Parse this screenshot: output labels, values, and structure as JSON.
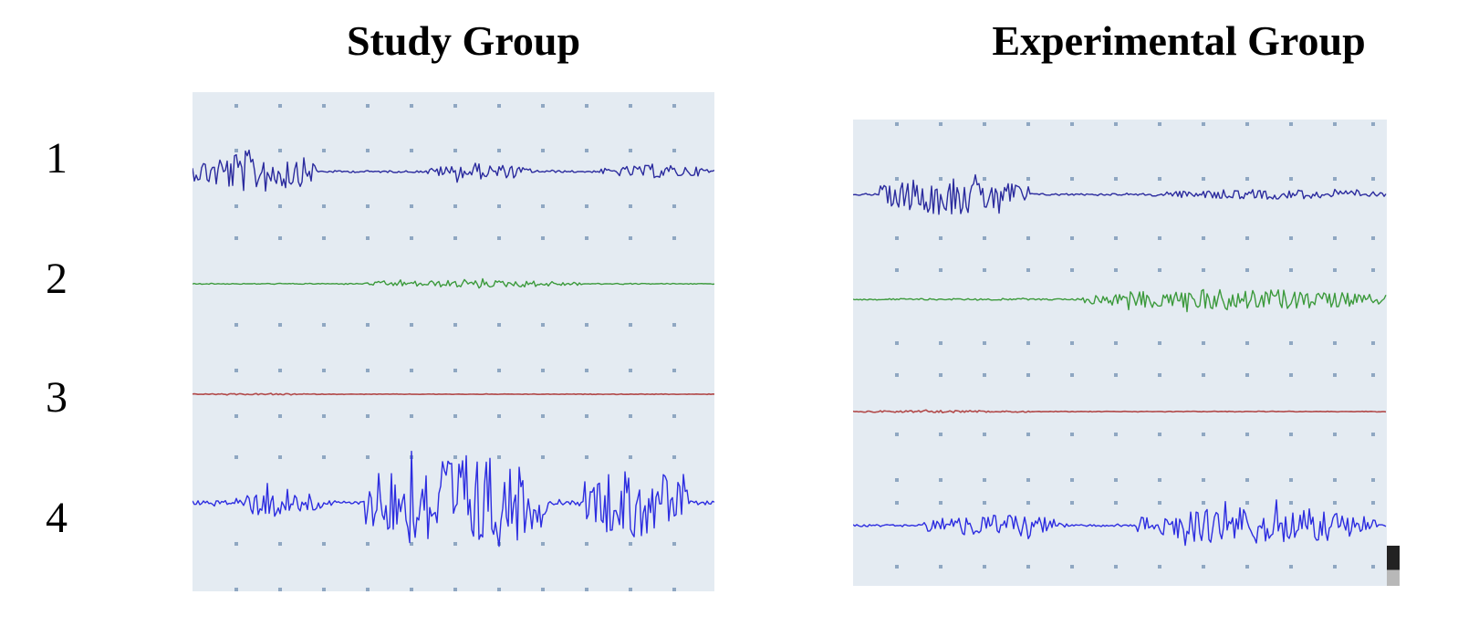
{
  "panels": [
    {
      "title": "Study Group"
    },
    {
      "title": "Experimental Group"
    }
  ],
  "rows": [
    "1",
    "2",
    "3",
    "4"
  ],
  "colors": {
    "background": "#e4ebf2",
    "grid_dot": "#8fa7c2",
    "trace_1": "#2b2b9e",
    "trace_2": "#3c9a3c",
    "trace_3": "#b24a4a",
    "trace_4": "#2d2de0"
  },
  "chart_data": [
    {
      "type": "line",
      "title": "Study Group",
      "xlabel": "",
      "ylabel": "",
      "grid": "dotted",
      "series": [
        {
          "label": "1",
          "bursts": [
            {
              "start": 0.0,
              "end": 0.24,
              "amp": 0.85
            },
            {
              "start": 0.45,
              "end": 0.65,
              "amp": 0.3
            },
            {
              "start": 0.78,
              "end": 1.0,
              "amp": 0.25
            }
          ]
        },
        {
          "label": "2",
          "bursts": [
            {
              "start": 0.33,
              "end": 0.75,
              "amp": 0.3
            }
          ]
        },
        {
          "label": "3",
          "bursts": [
            {
              "start": 0.0,
              "end": 0.25,
              "amp": 0.1
            }
          ]
        },
        {
          "label": "4",
          "bursts": [
            {
              "start": 0.08,
              "end": 0.25,
              "amp": 0.3
            },
            {
              "start": 0.33,
              "end": 0.68,
              "amp": 1.0
            },
            {
              "start": 0.75,
              "end": 0.95,
              "amp": 0.7
            }
          ]
        }
      ]
    },
    {
      "type": "line",
      "title": "Experimental Group",
      "xlabel": "",
      "ylabel": "",
      "grid": "dotted",
      "series": [
        {
          "label": "1",
          "bursts": [
            {
              "start": 0.05,
              "end": 0.33,
              "amp": 0.85
            },
            {
              "start": 0.55,
              "end": 1.0,
              "amp": 0.2
            }
          ]
        },
        {
          "label": "2",
          "bursts": [
            {
              "start": 0.43,
              "end": 1.0,
              "amp": 0.55
            }
          ]
        },
        {
          "label": "3",
          "bursts": [
            {
              "start": 0.0,
              "end": 0.35,
              "amp": 0.15
            }
          ]
        },
        {
          "label": "4",
          "bursts": [
            {
              "start": 0.13,
              "end": 0.4,
              "amp": 0.45
            },
            {
              "start": 0.53,
              "end": 0.98,
              "amp": 0.75
            }
          ]
        }
      ]
    }
  ]
}
